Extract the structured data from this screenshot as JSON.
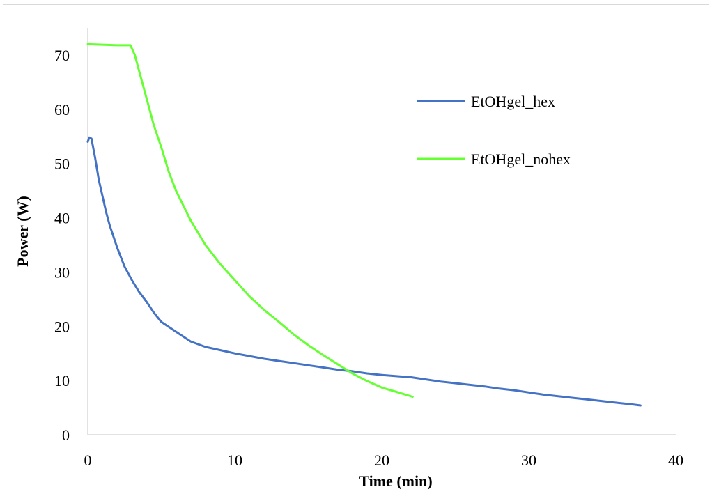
{
  "chart_data": {
    "type": "line",
    "title": "",
    "xlabel": "Time (min)",
    "ylabel": "Power (W)",
    "xlim": [
      0,
      40
    ],
    "ylim": [
      0,
      75
    ],
    "xticks": [
      0,
      10,
      20,
      30,
      40
    ],
    "yticks": [
      0,
      10,
      20,
      30,
      40,
      50,
      60,
      70
    ],
    "grid": false,
    "legend_position": "right-top-inside",
    "series": [
      {
        "name": "EtOHgel_hex",
        "color": "#4472c4",
        "x": [
          0,
          0.1,
          0.25,
          0.5,
          0.75,
          1,
          1.25,
          1.5,
          2,
          2.5,
          3,
          3.5,
          4,
          4.5,
          5,
          6,
          7,
          8,
          9,
          10,
          11,
          12,
          13,
          14,
          15,
          16,
          17,
          18,
          19,
          20,
          21,
          22,
          23,
          24,
          25,
          26,
          27,
          28,
          29,
          30,
          31,
          32,
          33,
          34,
          35,
          36,
          37,
          37.6
        ],
        "y": [
          54,
          54.8,
          54.6,
          51,
          47,
          44,
          41,
          38.5,
          34.5,
          31,
          28.5,
          26.3,
          24.5,
          22.5,
          20.8,
          19,
          17.2,
          16.2,
          15.6,
          15,
          14.5,
          14,
          13.6,
          13.2,
          12.8,
          12.4,
          12,
          11.7,
          11.3,
          11,
          10.8,
          10.6,
          10.2,
          9.8,
          9.5,
          9.2,
          8.9,
          8.5,
          8.2,
          7.8,
          7.4,
          7.1,
          6.8,
          6.5,
          6.2,
          5.9,
          5.6,
          5.4
        ]
      },
      {
        "name": "EtOHgel_nohex",
        "color": "#66ff33",
        "x": [
          0,
          1,
          2,
          2.9,
          3.2,
          3.5,
          4,
          4.5,
          5,
          5.5,
          6,
          7,
          8,
          9,
          10,
          11,
          12,
          13,
          14,
          15,
          16,
          17,
          18,
          19,
          20,
          21,
          22.1
        ],
        "y": [
          72,
          71.9,
          71.8,
          71.8,
          70,
          67,
          62,
          57,
          53,
          48.5,
          45,
          39.5,
          35,
          31.5,
          28.5,
          25.5,
          23,
          20.8,
          18.5,
          16.5,
          14.7,
          13,
          11.3,
          9.9,
          8.7,
          7.9,
          7
        ]
      }
    ]
  }
}
